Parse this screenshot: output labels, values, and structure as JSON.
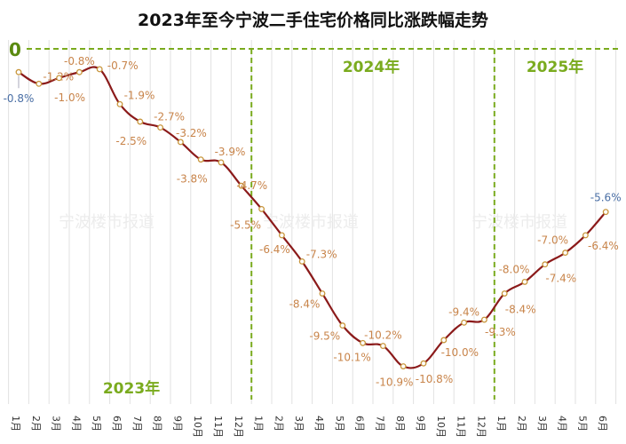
{
  "chart_data": {
    "type": "line",
    "title": "2023年至今宁波二手住宅价格同比涨跌幅走势",
    "categories": [
      "1月",
      "2月",
      "3月",
      "4月",
      "5月",
      "6月",
      "7月",
      "8月",
      "9月",
      "10月",
      "11月",
      "12月",
      "1月",
      "2月",
      "3月",
      "4月",
      "5月",
      "6月",
      "7月",
      "8月",
      "9月",
      "10月",
      "11月",
      "12月",
      "1月",
      "2月",
      "3月",
      "4月",
      "5月",
      "6月"
    ],
    "series": [
      {
        "values": [
          -0.8,
          -1.2,
          -1.0,
          -0.8,
          -0.7,
          -1.9,
          -2.5,
          -2.7,
          -3.2,
          -3.8,
          -3.9,
          -4.7,
          -5.5,
          -6.4,
          -7.3,
          -8.4,
          -9.5,
          -10.1,
          -10.2,
          -10.9,
          -10.8,
          -10.0,
          -9.4,
          -9.3,
          -8.4,
          -8.0,
          -7.4,
          -7.0,
          -6.4,
          -5.6
        ],
        "unit": "%"
      }
    ],
    "ylim": [
      -11.8,
      0
    ],
    "zero_label": "0",
    "year_labels": [
      "2023年",
      "2024年",
      "2025年"
    ],
    "watermark": "宁波楼市报道",
    "grid": "vertical",
    "colors": {
      "line": "#8b1a1a",
      "marker": "#c8963c",
      "label": "#c8844a",
      "endpoint_label": "#4a6fa5",
      "year": "#7aab1e",
      "divider": "#7aab1e"
    }
  }
}
